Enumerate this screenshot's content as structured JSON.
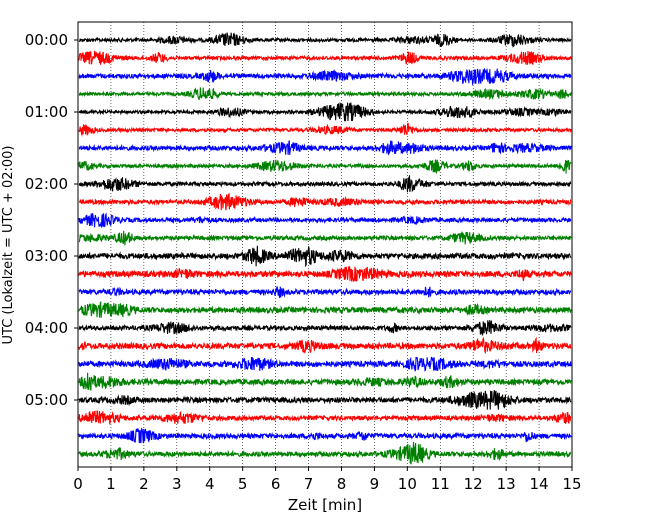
{
  "chart_data": {
    "type": "line",
    "xlabel": "Zeit  [min]",
    "ylabel": "UTC (Lokalzeit = UTC + 02:00)",
    "xlim": [
      0,
      15
    ],
    "x_ticks": [
      "0",
      "1",
      "2",
      "3",
      "4",
      "5",
      "6",
      "7",
      "8",
      "9",
      "10",
      "11",
      "12",
      "13",
      "14",
      "15"
    ],
    "y_tick_labels": [
      "00:00",
      "01:00",
      "02:00",
      "03:00",
      "04:00",
      "05:00"
    ],
    "trace_interval_minutes": 15,
    "trace_count": 24,
    "trace_colors": [
      "#000000",
      "#ff0000",
      "#0000ff",
      "#008000"
    ],
    "grid": "vertical dotted at each minute",
    "legend": "none"
  }
}
